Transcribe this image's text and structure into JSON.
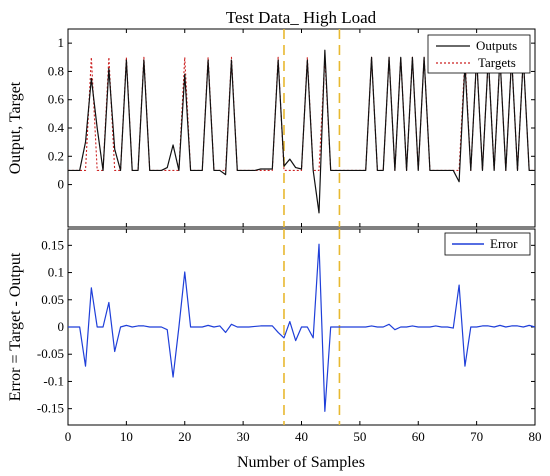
{
  "figure_title": "Test Data_ High Load",
  "colors": {
    "outputs": "#111111",
    "targets": "#cc2222",
    "error": "#1f3fd9",
    "marker": "#e8b830",
    "axes": "#000000"
  },
  "chart_data": [
    {
      "type": "line",
      "title": "Test Data_ High Load",
      "xlabel": "",
      "ylabel": "Output, Target",
      "xlim": [
        0,
        80
      ],
      "ylim": [
        -0.3,
        1.1
      ],
      "yticks": [
        "0",
        "0.2",
        "0.4",
        "0.6",
        "0.8",
        "1"
      ],
      "grid": false,
      "legend": {
        "placement": "top-right",
        "entries": [
          "Outputs",
          "Targets"
        ]
      },
      "vlines": [
        37,
        46.5
      ],
      "series": [
        {
          "name": "Outputs",
          "style": "solid",
          "x": [
            0,
            1,
            2,
            3,
            4,
            5,
            6,
            7,
            8,
            9,
            10,
            11,
            12,
            13,
            14,
            15,
            16,
            17,
            18,
            19,
            20,
            21,
            22,
            23,
            24,
            25,
            26,
            27,
            28,
            29,
            30,
            31,
            32,
            33,
            34,
            35,
            36,
            37,
            38,
            39,
            40,
            41,
            42,
            43,
            44,
            45,
            46,
            47,
            48,
            49,
            50,
            51,
            52,
            53,
            54,
            55,
            56,
            57,
            58,
            59,
            60,
            61,
            62,
            63,
            64,
            65,
            66,
            67,
            68,
            69,
            70,
            71,
            72,
            73,
            74,
            75,
            76,
            77,
            78,
            79,
            80
          ],
          "y": [
            0.1,
            0.1,
            0.1,
            0.3,
            0.75,
            0.4,
            0.1,
            0.82,
            0.25,
            0.1,
            0.88,
            0.1,
            0.1,
            0.88,
            0.1,
            0.1,
            0.1,
            0.12,
            0.28,
            0.1,
            0.78,
            0.1,
            0.1,
            0.1,
            0.88,
            0.1,
            0.1,
            0.07,
            0.88,
            0.1,
            0.1,
            0.1,
            0.1,
            0.11,
            0.11,
            0.11,
            0.88,
            0.13,
            0.18,
            0.12,
            0.11,
            0.88,
            0.1,
            -0.2,
            0.95,
            0.1,
            0.1,
            0.1,
            0.1,
            0.1,
            0.1,
            0.1,
            0.9,
            0.1,
            0.1,
            0.9,
            0.1,
            0.9,
            0.1,
            0.9,
            0.1,
            0.9,
            0.1,
            0.1,
            0.1,
            0.1,
            0.1,
            0.02,
            0.85,
            0.1,
            0.9,
            0.1,
            0.9,
            0.1,
            0.9,
            0.1,
            0.9,
            0.1,
            0.9,
            0.1,
            0.1
          ]
        },
        {
          "name": "Targets",
          "style": "dashed",
          "x": [
            0,
            1,
            2,
            3,
            4,
            5,
            6,
            7,
            8,
            9,
            10,
            11,
            12,
            13,
            14,
            15,
            16,
            17,
            18,
            19,
            20,
            21,
            22,
            23,
            24,
            25,
            26,
            27,
            28,
            29,
            30,
            31,
            32,
            33,
            34,
            35,
            36,
            37,
            38,
            39,
            40,
            41,
            42,
            43,
            44,
            45,
            46,
            47,
            48,
            49,
            50,
            51,
            52,
            53,
            54,
            55,
            56,
            57,
            58,
            59,
            60,
            61,
            62,
            63,
            64,
            65,
            66,
            67,
            68,
            69,
            70,
            71,
            72,
            73,
            74,
            75,
            76,
            77,
            78,
            79,
            80
          ],
          "y": [
            0.1,
            0.1,
            0.1,
            0.1,
            0.9,
            0.1,
            0.1,
            0.9,
            0.1,
            0.1,
            0.9,
            0.1,
            0.1,
            0.9,
            0.1,
            0.1,
            0.1,
            0.1,
            0.1,
            0.1,
            0.9,
            0.1,
            0.1,
            0.1,
            0.9,
            0.1,
            0.1,
            0.1,
            0.9,
            0.1,
            0.1,
            0.1,
            0.1,
            0.1,
            0.1,
            0.1,
            0.9,
            0.1,
            0.1,
            0.1,
            0.1,
            0.9,
            0.1,
            0.1,
            0.9,
            0.1,
            0.1,
            0.1,
            0.1,
            0.1,
            0.1,
            0.1,
            0.9,
            0.1,
            0.1,
            0.9,
            0.1,
            0.9,
            0.1,
            0.9,
            0.1,
            0.9,
            0.1,
            0.1,
            0.1,
            0.1,
            0.1,
            0.1,
            0.9,
            0.1,
            0.9,
            0.1,
            0.9,
            0.1,
            0.9,
            0.1,
            0.9,
            0.1,
            0.9,
            0.1,
            0.1
          ]
        }
      ]
    },
    {
      "type": "line",
      "title": "",
      "xlabel": "Number of Samples",
      "ylabel": "Error = Target - Output",
      "xlim": [
        0,
        80
      ],
      "ylim": [
        -0.18,
        0.18
      ],
      "xticks": [
        "0",
        "10",
        "20",
        "30",
        "40",
        "50",
        "60",
        "70",
        "80"
      ],
      "yticks": [
        "-0.15",
        "-0.1",
        "-0.05",
        "0",
        "0.05",
        "0.1",
        "0.15"
      ],
      "grid": false,
      "legend": {
        "placement": "top-right",
        "entries": [
          "Error"
        ]
      },
      "vlines": [
        37,
        46.5
      ],
      "series": [
        {
          "name": "Error",
          "style": "solid",
          "x": [
            0,
            1,
            2,
            3,
            4,
            5,
            6,
            7,
            8,
            9,
            10,
            11,
            12,
            13,
            14,
            15,
            16,
            17,
            18,
            19,
            20,
            21,
            22,
            23,
            24,
            25,
            26,
            27,
            28,
            29,
            30,
            31,
            32,
            33,
            34,
            35,
            36,
            37,
            38,
            39,
            40,
            41,
            42,
            43,
            44,
            45,
            46,
            47,
            48,
            49,
            50,
            51,
            52,
            53,
            54,
            55,
            56,
            57,
            58,
            59,
            60,
            61,
            62,
            63,
            64,
            65,
            66,
            67,
            68,
            69,
            70,
            71,
            72,
            73,
            74,
            75,
            76,
            77,
            78,
            79,
            80
          ],
          "y": [
            0,
            0,
            0,
            -0.072,
            0.072,
            0,
            0,
            0.045,
            -0.045,
            0,
            0.003,
            0,
            0.002,
            0.002,
            0,
            0,
            0,
            -0.005,
            -0.092,
            0,
            0.101,
            0,
            0,
            0,
            0.003,
            0,
            0.002,
            -0.01,
            0.005,
            0,
            0,
            0,
            0.001,
            0.002,
            0.002,
            0.002,
            -0.01,
            -0.02,
            0.01,
            -0.025,
            0,
            0,
            -0.02,
            0.152,
            -0.155,
            0,
            0,
            0,
            0,
            0,
            0,
            0,
            0.002,
            0,
            0,
            0.005,
            -0.005,
            0,
            0,
            0.002,
            0,
            0,
            0,
            0.002,
            0,
            0,
            -0.002,
            0.077,
            -0.072,
            0,
            0,
            0.002,
            0.002,
            0,
            0.003,
            0,
            0.002,
            0.002,
            0,
            0.003,
            0
          ]
        }
      ]
    }
  ]
}
